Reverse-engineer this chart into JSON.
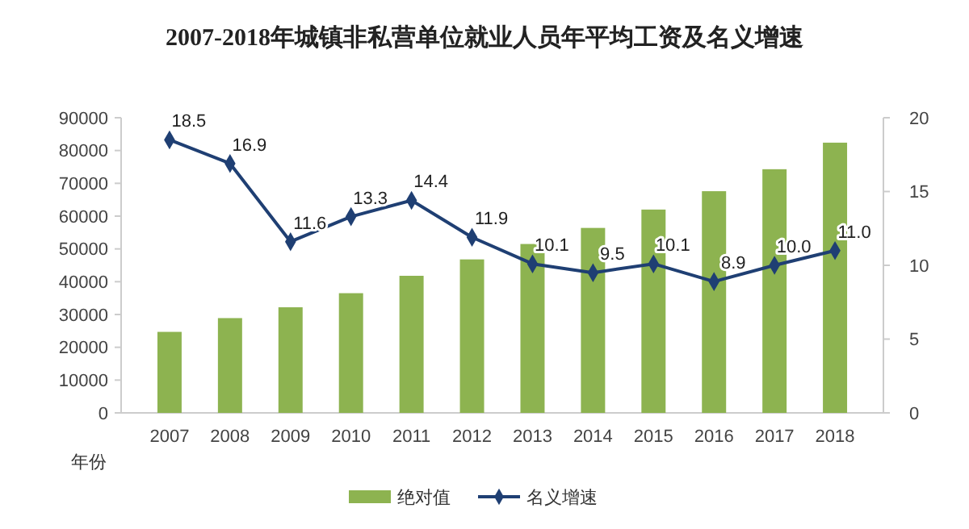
{
  "chart_data": {
    "type": "bar",
    "title": "2007-2018年城镇非私营单位就业人员年平均工资及名义增速",
    "xlabel": "年份",
    "categories": [
      "2007",
      "2008",
      "2009",
      "2010",
      "2011",
      "2012",
      "2013",
      "2014",
      "2015",
      "2016",
      "2017",
      "2018"
    ],
    "series": [
      {
        "name": "绝对值",
        "color": "#8db350",
        "values": [
          24700,
          28900,
          32200,
          36500,
          41800,
          46800,
          51500,
          56400,
          62000,
          67600,
          74300,
          82400
        ]
      },
      {
        "name": "名义增速",
        "type": "line",
        "axis": "y2",
        "color": "#1f3f73",
        "marker": "diamond",
        "values": [
          18.5,
          16.9,
          11.6,
          13.3,
          14.4,
          11.9,
          10.1,
          9.5,
          10.1,
          8.9,
          10.0,
          11.0
        ],
        "value_labels": [
          "18.5",
          "16.9",
          "11.6",
          "13.3",
          "14.4",
          "11.9",
          "10.1",
          "9.5",
          "10.1",
          "8.9",
          "10.0",
          "11.0"
        ]
      }
    ],
    "ylim": [
      0,
      90000
    ],
    "yticks": [
      0,
      10000,
      20000,
      30000,
      40000,
      50000,
      60000,
      70000,
      80000,
      90000
    ],
    "y2lim": [
      0,
      20
    ],
    "y2ticks": [
      0,
      5,
      10,
      15,
      20
    ],
    "legend": "bottom",
    "grid": false
  }
}
